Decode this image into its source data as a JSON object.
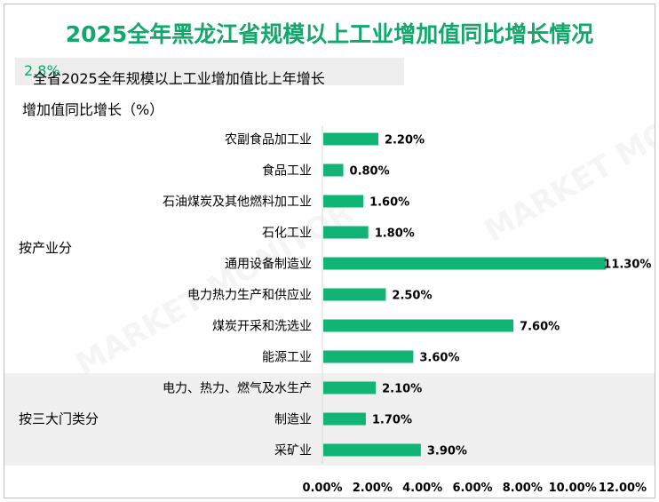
{
  "title": "2025全年黑龙江省规模以上工业增加值同比增长情况",
  "subtitle": {
    "prefix": "全省2025全年规模以上工业增加值比上年增长",
    "highlight": "2.8%"
  },
  "colors": {
    "accent": "#12a86b",
    "bar": "#12b476",
    "band": "#f0f0f0"
  },
  "chart_data": {
    "type": "bar",
    "orientation": "horizontal",
    "ylabel": "增加值同比增长（%）",
    "groups": [
      {
        "label": "按产业分",
        "categories": [
          "农副食品加工业",
          "食品工业",
          "石油煤炭及其他燃料加工业",
          "石化工业",
          "通用设备制造业",
          "电力热力生产和供应业",
          "煤炭开采和洗选业",
          "能源工业"
        ]
      },
      {
        "label": "按三大门类分",
        "categories": [
          "电力、热力、燃气及水生产",
          "制造业",
          "采矿业"
        ]
      }
    ],
    "categories": [
      "农副食品加工业",
      "食品工业",
      "石油煤炭及其他燃料加工业",
      "石化工业",
      "通用设备制造业",
      "电力热力生产和供应业",
      "煤炭开采和洗选业",
      "能源工业",
      "电力、热力、燃气及水生产",
      "制造业",
      "采矿业"
    ],
    "values": [
      2.2,
      0.8,
      1.6,
      1.8,
      11.3,
      2.5,
      7.6,
      3.6,
      2.1,
      1.7,
      3.9
    ],
    "value_labels": [
      "2.20%",
      "0.80%",
      "1.60%",
      "1.80%",
      "11.30%",
      "2.50%",
      "7.60%",
      "3.60%",
      "2.10%",
      "1.70%",
      "3.90%"
    ],
    "xlim": [
      0,
      12
    ],
    "xticks": [
      0,
      2,
      4,
      6,
      8,
      10,
      12
    ],
    "xtick_labels": [
      "0.00%",
      "2.00%",
      "4.00%",
      "6.00%",
      "8.00%",
      "10.00%",
      "12.00%"
    ],
    "grid": false,
    "legend": "none"
  }
}
